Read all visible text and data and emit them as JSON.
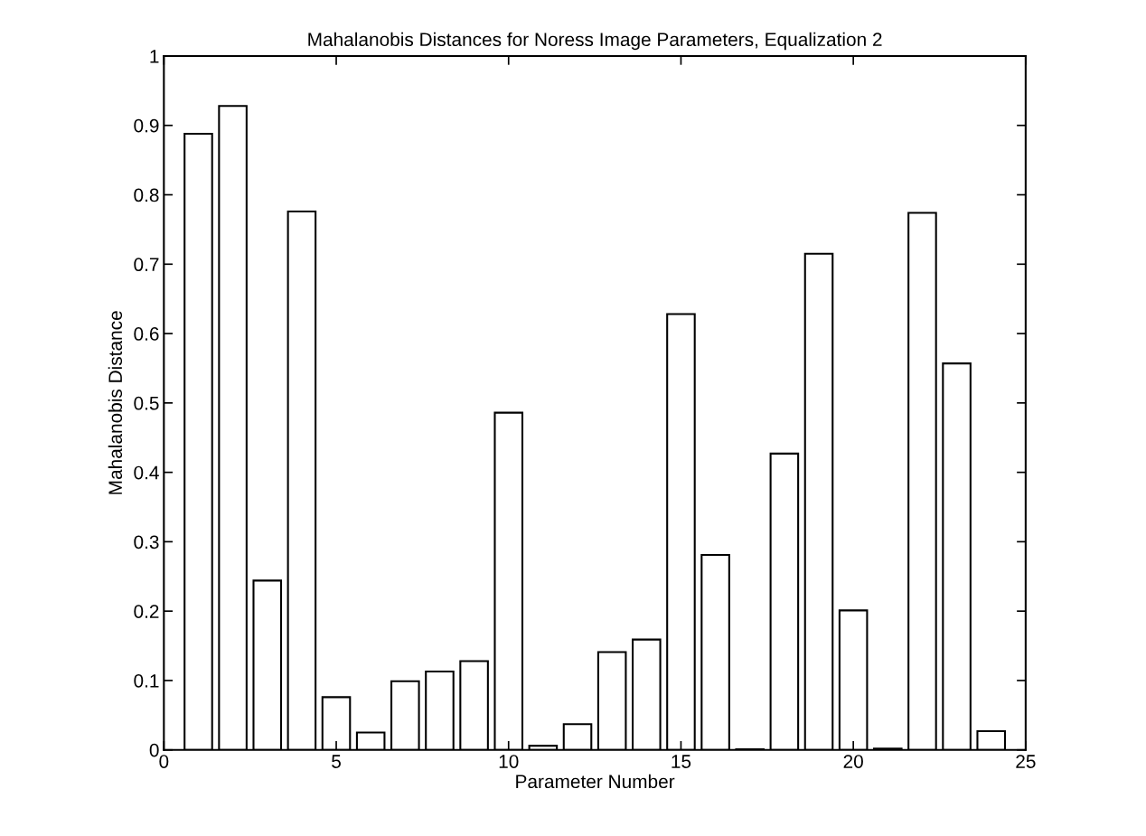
{
  "chart_data": {
    "type": "bar",
    "title": "Mahalanobis Distances for Noress Image Parameters, Equalization 2",
    "xlabel": "Parameter Number",
    "ylabel": "Mahalanobis Distance",
    "x": [
      1,
      2,
      3,
      4,
      5,
      6,
      7,
      8,
      9,
      10,
      11,
      12,
      13,
      14,
      15,
      16,
      17,
      18,
      19,
      20,
      21,
      22,
      23,
      24
    ],
    "values": [
      0.888,
      0.928,
      0.244,
      0.776,
      0.076,
      0.025,
      0.099,
      0.113,
      0.128,
      0.486,
      0.006,
      0.037,
      0.141,
      0.159,
      0.628,
      0.281,
      0.001,
      0.427,
      0.715,
      0.201,
      0.002,
      0.774,
      0.557,
      0.027
    ],
    "color": "#ffffff",
    "xlim": [
      0,
      25
    ],
    "xticks": [
      0,
      5,
      10,
      15,
      20,
      25
    ],
    "ylim": [
      0,
      1
    ],
    "yticks": [
      0,
      0.1,
      0.2,
      0.3,
      0.4,
      0.5,
      0.6,
      0.7,
      0.8,
      0.9,
      1
    ],
    "grid": false
  }
}
